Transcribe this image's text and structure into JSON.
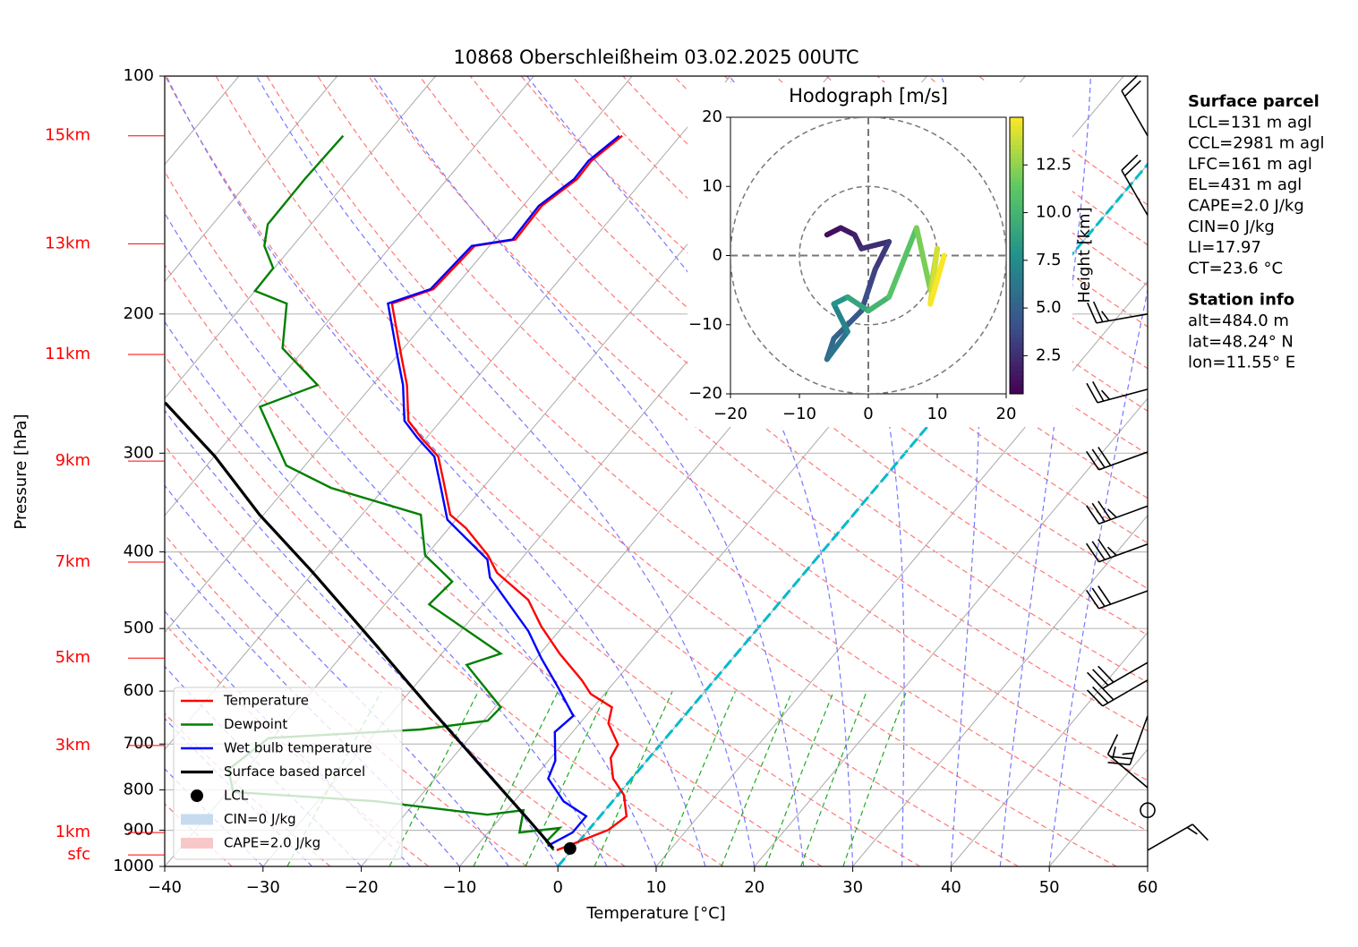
{
  "chart_data": [
    {
      "type": "skewt",
      "title": "10868 Oberschleißheim 03.02.2025 00UTC",
      "xlabel": "Temperature [°C]",
      "ylabel": "Pressure [hPa]",
      "xlim": [
        -40,
        60
      ],
      "ylim": [
        1000,
        100
      ],
      "log_scale": true,
      "grid": true,
      "xticks": [
        {
          "value": -40,
          "label": "−40"
        },
        {
          "value": -30,
          "label": "−30"
        },
        {
          "value": -20,
          "label": "−20"
        },
        {
          "value": -10,
          "label": "−10"
        },
        0,
        10,
        20,
        30,
        40,
        50,
        60
      ],
      "yticks": [
        100,
        200,
        300,
        400,
        500,
        600,
        700,
        800,
        900,
        1000
      ],
      "series": [
        {
          "name": "Temperature",
          "color": "#ff0000",
          "pressure": [
            954,
            899,
            864,
            812,
            774,
            729,
            701,
            659,
            629,
            605,
            581,
            538,
            497,
            460,
            425,
            404,
            373,
            359,
            327,
            303,
            287,
            273,
            246,
            227,
            194,
            186,
            164,
            161,
            146,
            135,
            128,
            119
          ],
          "values": [
            -1.5,
            2.0,
            2.7,
            0.6,
            -1.9,
            -3.9,
            -4.3,
            -7.1,
            -8.1,
            -11.4,
            -13.5,
            -18.0,
            -22.2,
            -25.8,
            -31.3,
            -33.7,
            -38.3,
            -41.0,
            -44.4,
            -47.2,
            -50.5,
            -53.3,
            -56.5,
            -59.4,
            -65.0,
            -62.0,
            -61.5,
            -57.9,
            -58.1,
            -56.8,
            -56.9,
            -55.9
          ]
        },
        {
          "name": "Dewpoint",
          "color": "#008000",
          "pressure": [
            954,
            930,
            894,
            906,
            849,
            860,
            827,
            805,
            754,
            688,
            671,
            654,
            629,
            556,
            538,
            466,
            436,
            404,
            359,
            332,
            311,
            262,
            246,
            221,
            194,
            187,
            175,
            164,
            154,
            135,
            119
          ],
          "values": [
            -1.8,
            -3.3,
            -3.1,
            -6.8,
            -8.3,
            -11.6,
            -24.1,
            -39.4,
            -41.8,
            -40.4,
            -25.7,
            -19.6,
            -19.4,
            -26.5,
            -24.0,
            -35.5,
            -35.1,
            -40.1,
            -44.0,
            -55.4,
            -61.9,
            -69.6,
            -65.6,
            -72.3,
            -75.7,
            -80.0,
            -80.1,
            -82.9,
            -84.4,
            -84.5,
            -84.3
          ]
        },
        {
          "name": "Wet bulb temperature",
          "color": "#0000ff",
          "pressure": [
            942,
            906,
            864,
            827,
            774,
            735,
            676,
            645,
            597,
            545,
            504,
            431,
            409,
            364,
            327,
            303,
            287,
            273,
            246,
            227,
            194,
            186,
            164,
            161,
            146,
            135,
            128,
            119
          ],
          "values": [
            -2.8,
            -1.4,
            -1.4,
            -5.0,
            -8.5,
            -9.3,
            -11.8,
            -11.3,
            -15.0,
            -19.5,
            -23.1,
            -31.6,
            -33.4,
            -40.9,
            -44.8,
            -47.6,
            -50.9,
            -53.7,
            -56.9,
            -59.8,
            -65.4,
            -62.3,
            -61.8,
            -58.2,
            -58.4,
            -57.1,
            -57.2,
            -56.2
          ]
        },
        {
          "name": "Surface based parcel",
          "color": "#000000",
          "pressure": [
            949,
            871,
            754,
            629,
            524,
            425,
            359,
            303,
            259
          ],
          "values": [
            -2.0,
            -7.1,
            -15.8,
            -26.7,
            -37.5,
            -50.0,
            -60.4,
            -69.9,
            -79.6
          ]
        }
      ],
      "lcl": {
        "name": "LCL",
        "pressure": 949,
        "temperature": -0.3,
        "color": "#000000"
      },
      "cin": {
        "name": "CIN=0 J/kg",
        "color": "#c6dbef"
      },
      "cape": {
        "name": "CAPE=2.0 J/kg",
        "color": "#f8c8c8"
      },
      "height_labels": [
        {
          "label": "15km",
          "pressure": 119
        },
        {
          "label": "13km",
          "pressure": 163
        },
        {
          "label": "11km",
          "pressure": 225
        },
        {
          "label": "9km",
          "pressure": 307
        },
        {
          "label": "7km",
          "pressure": 412
        },
        {
          "label": "5km",
          "pressure": 545
        },
        {
          "label": "3km",
          "pressure": 703
        },
        {
          "label": "1km",
          "pressure": 906
        },
        {
          "label": "sfc",
          "pressure": 967
        }
      ],
      "wind_barbs": {
        "pressure": [
          119,
          150,
          200,
          249,
          299,
          350,
          391,
          448,
          552,
          581,
          645,
          795,
          849,
          954
        ],
        "speed": [
          20,
          20,
          25,
          25,
          30,
          35,
          35,
          30,
          30,
          30,
          25,
          15,
          0,
          15
        ],
        "direction": [
          330,
          330,
          260,
          255,
          250,
          250,
          250,
          250,
          240,
          240,
          200,
          310,
          0,
          60
        ]
      },
      "surface_parcel": {
        "heading": "Surface parcel",
        "lines": [
          "LCL=131 m agl",
          "CCL=2981 m agl",
          "LFC=161 m agl",
          "EL=431 m agl",
          "CAPE=2.0 J/kg",
          "CIN=0 J/kg",
          "LI=17.97",
          "CT=23.6 °C"
        ]
      },
      "station_info": {
        "heading": "Station info",
        "lines": [
          "alt=484.0 m",
          "lat=48.24° N",
          "lon=11.55° E"
        ]
      }
    },
    {
      "type": "hodograph",
      "title": "Hodograph [m/s]",
      "xlim": [
        -20,
        20
      ],
      "ylim": [
        -20,
        20
      ],
      "xticks": [
        {
          "value": -20,
          "label": "−20"
        },
        {
          "value": -10,
          "label": "−10"
        },
        0,
        10,
        20
      ],
      "yticks": [
        {
          "value": -20,
          "label": "−20"
        },
        {
          "value": -10,
          "label": "−10"
        },
        0,
        10,
        20
      ],
      "rings": [
        10,
        20
      ],
      "u": [
        -6,
        -4,
        -2,
        -1,
        3,
        1,
        0,
        -1,
        -3,
        -5,
        -6,
        -3,
        -5,
        -3,
        0,
        3,
        7,
        9,
        10,
        9,
        11
      ],
      "v": [
        3,
        4,
        3,
        1,
        2,
        -2,
        -5,
        -8,
        -10,
        -12,
        -15,
        -11,
        -7,
        -6,
        -8,
        -6,
        4,
        -5,
        1,
        -7,
        0
      ],
      "height": [
        0.6,
        1.0,
        1.5,
        2.0,
        2.5,
        3.0,
        3.5,
        4.0,
        4.5,
        5.0,
        5.5,
        6.0,
        7.0,
        8.0,
        9.0,
        10.0,
        11.0,
        12.0,
        13.0,
        14.0,
        14.9
      ],
      "colorbar": {
        "label": "Height [km]",
        "lim": [
          0.5,
          15.0
        ],
        "ticks": [
          2.5,
          {
            "value": 5,
            "label": "5.0"
          },
          7.5,
          {
            "value": 10,
            "label": "10.0"
          },
          12.5
        ]
      }
    }
  ]
}
